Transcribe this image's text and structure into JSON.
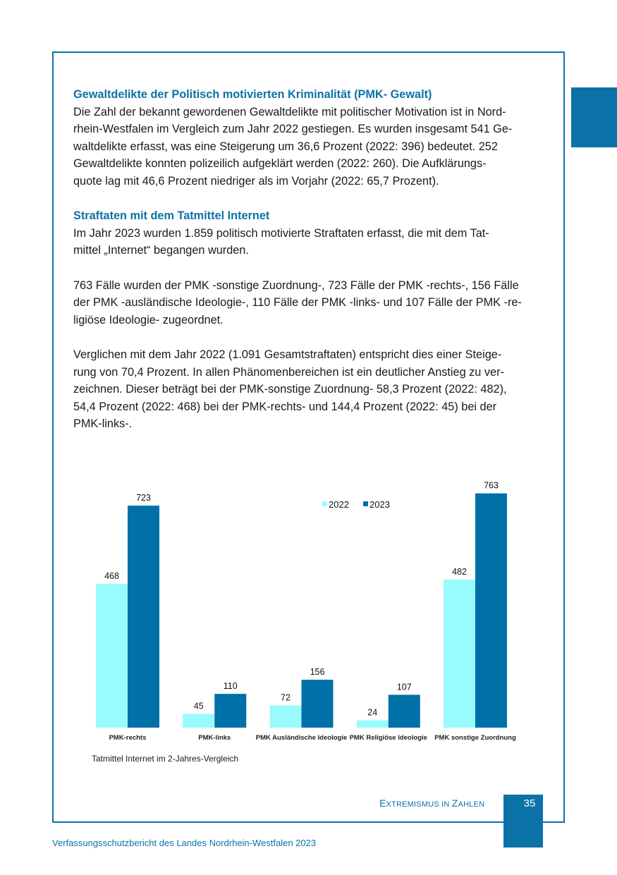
{
  "section1": {
    "heading": "Gewaltdelikte der Politisch motivierten Kriminalität (PMK- Gewalt)",
    "lines": [
      "Die Zahl der bekannt gewordenen Gewaltdelikte mit politischer Motivation ist in Nord-",
      "rhein-Westfalen im Vergleich zum Jahr 2022 gestiegen. Es wurden insgesamt 541 Ge-",
      "waltdelikte erfasst, was eine Steigerung um 36,6 Prozent (2022: 396) bedeutet. 252",
      "Gewaltdelikte konnten polizeilich aufgeklärt werden (2022: 260). Die Aufklärungs-",
      "quote lag mit 46,6 Prozent niedriger als im Vorjahr (2022: 65,7 Prozent)."
    ]
  },
  "section2": {
    "heading": "Straftaten mit dem Tatmittel Internet",
    "p1": [
      "Im Jahr 2023 wurden 1.859 politisch motivierte Straftaten erfasst, die mit dem Tat-",
      "mittel „Internet“ begangen wurden."
    ],
    "p2": [
      "763 Fälle wurden der PMK -sonstige Zuordnung-, 723 Fälle der PMK -rechts-, 156 Fälle",
      "der PMK -ausländische Ideologie-, 110 Fälle der PMK -links- und 107 Fälle der PMK -re-",
      "ligiöse Ideologie- zugeordnet."
    ],
    "p3": [
      "Verglichen mit dem Jahr 2022 (1.091 Gesamtstraftaten) entspricht dies einer Steige-",
      "rung von 70,4 Prozent.  In allen Phänomenbereichen ist ein deutlicher Anstieg zu ver-",
      "zeichnen. Dieser beträgt bei der PMK-sonstige Zuordnung- 58,3 Prozent (2022: 482),",
      "54,4 Prozent (2022: 468) bei der PMK-rechts- und 144,4 Prozent (2022: 45) bei der",
      "PMK-links-."
    ]
  },
  "chart_data": {
    "type": "bar",
    "title": "",
    "caption": "Tatmittel Internet im 2-Jahres-Vergleich",
    "categories": [
      "PMK-rechts",
      "PMK-links",
      "PMK Ausländische Ideologie",
      "PMK Religiöse Ideologie",
      "PMK sonstige Zuordnung"
    ],
    "series": [
      {
        "name": "2022",
        "values": [
          468,
          45,
          72,
          24,
          482
        ],
        "color": "#98fbfd"
      },
      {
        "name": "2023",
        "values": [
          723,
          110,
          156,
          107,
          763
        ],
        "color": "#0070a8"
      }
    ],
    "ylim": [
      0,
      800
    ],
    "grid": false,
    "legend": "top-center"
  },
  "footer": {
    "running_title": [
      "E",
      "XTREMISMUS IN ",
      "Z",
      "AHLEN"
    ],
    "page_number": "35",
    "publication": "Verfassungsschutzbericht des Landes Nordrhein-Westfalen 2023"
  }
}
